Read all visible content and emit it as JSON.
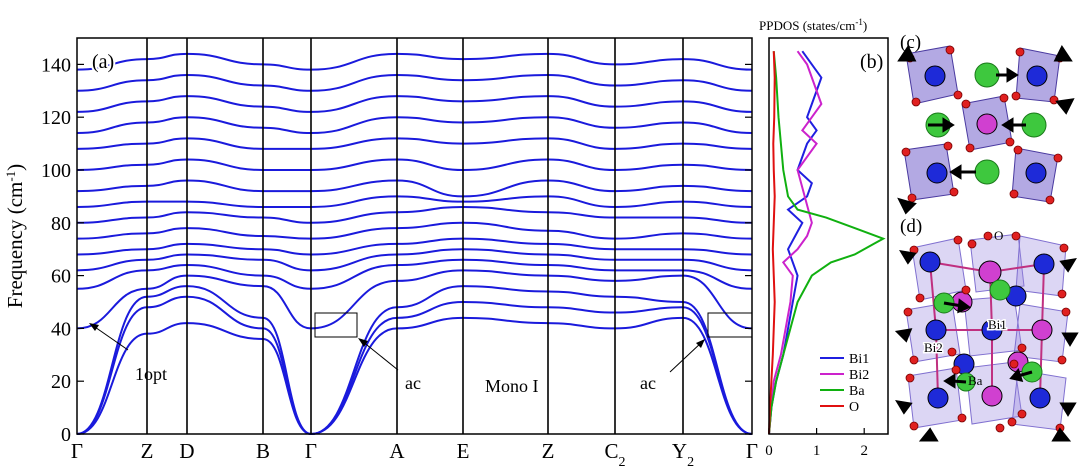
{
  "panels": {
    "a": {
      "label": "(a)",
      "phase_label": "Mono I",
      "annotations": [
        "1opt",
        "ac",
        "ac"
      ]
    },
    "b": {
      "label": "(b)"
    },
    "c": {
      "label": "(c)"
    },
    "d": {
      "label": "(d)",
      "atom_labels": [
        "O",
        "Bi1",
        "Bi2",
        "Ba"
      ]
    }
  },
  "colors": {
    "band": "#1a1adc",
    "Bi1": "#1f1fe0",
    "Bi2": "#cc22cc",
    "Ba": "#10b010",
    "O": "#e01010",
    "octahedron": "#8070d0"
  },
  "chart_data": [
    {
      "type": "line",
      "panel": "a",
      "ylabel": "Frequency (cm",
      "ylabel_sup": "-1",
      "ylabel_tail": ")",
      "ylim": [
        0,
        150
      ],
      "yticks": [
        0,
        20,
        40,
        60,
        80,
        100,
        120,
        140
      ],
      "x": [
        "Γ",
        "Z",
        "D",
        "B",
        "Γ",
        "A",
        "E",
        "Z",
        "C",
        "Y",
        "Γ"
      ],
      "x_subscripts": [
        "",
        "",
        "",
        "",
        "",
        "",
        "",
        "",
        "2",
        "2",
        ""
      ],
      "series": [
        {
          "values": [
            0,
            38,
            42,
            36,
            0,
            40,
            44,
            42,
            40,
            44,
            0
          ]
        },
        {
          "values": [
            0,
            48,
            52,
            40,
            0,
            44,
            50,
            48,
            46,
            48,
            0
          ]
        },
        {
          "values": [
            0,
            52,
            56,
            44,
            0,
            48,
            56,
            54,
            52,
            50,
            0
          ]
        },
        {
          "values": [
            40,
            55,
            60,
            56,
            40,
            58,
            62,
            60,
            58,
            60,
            40
          ]
        },
        {
          "values": [
            55,
            62,
            64,
            60,
            55,
            64,
            66,
            64,
            62,
            62,
            55
          ]
        },
        {
          "values": [
            62,
            66,
            68,
            66,
            62,
            68,
            70,
            68,
            66,
            66,
            62
          ]
        },
        {
          "values": [
            68,
            70,
            72,
            70,
            68,
            72,
            74,
            72,
            70,
            70,
            68
          ]
        },
        {
          "values": [
            74,
            76,
            78,
            75,
            74,
            78,
            80,
            77,
            74,
            76,
            74
          ]
        },
        {
          "values": [
            80,
            82,
            84,
            82,
            80,
            84,
            86,
            84,
            82,
            82,
            80
          ]
        },
        {
          "values": [
            86,
            88,
            88,
            86,
            86,
            90,
            88,
            90,
            86,
            88,
            86
          ]
        },
        {
          "values": [
            92,
            94,
            96,
            92,
            92,
            96,
            90,
            96,
            92,
            94,
            92
          ]
        },
        {
          "values": [
            100,
            102,
            104,
            100,
            100,
            104,
            100,
            104,
            100,
            102,
            100
          ]
        },
        {
          "values": [
            108,
            110,
            112,
            108,
            108,
            112,
            110,
            112,
            108,
            110,
            108
          ]
        },
        {
          "values": [
            114,
            118,
            120,
            116,
            114,
            120,
            118,
            120,
            116,
            118,
            114
          ]
        },
        {
          "values": [
            122,
            126,
            128,
            124,
            122,
            128,
            126,
            128,
            124,
            126,
            122
          ]
        },
        {
          "values": [
            130,
            134,
            136,
            132,
            130,
            136,
            134,
            136,
            132,
            134,
            130
          ]
        },
        {
          "values": [
            138,
            142,
            144,
            140,
            138,
            144,
            142,
            144,
            140,
            142,
            138
          ]
        }
      ]
    },
    {
      "type": "line",
      "panel": "b",
      "title": "PPDOS (states/cm",
      "title_sup": "-1",
      "title_tail": ")",
      "xlim": [
        0,
        2.5
      ],
      "xticks": [
        0,
        1,
        2
      ],
      "ylim": [
        0,
        150
      ],
      "legend_position": "bottom-right",
      "series": [
        {
          "name": "Bi1",
          "color": "#1f1fe0",
          "x": [
            0,
            0.05,
            0.15,
            0.3,
            0.4,
            0.5,
            0.6,
            0.4,
            0.55,
            0.7,
            0.4,
            0.8,
            0.9,
            0.6,
            0.8,
            1.0,
            0.8,
            0.9,
            1.1,
            0.9,
            0.7
          ],
          "y": [
            0,
            10,
            20,
            30,
            40,
            50,
            60,
            70,
            75,
            80,
            85,
            90,
            95,
            100,
            110,
            115,
            120,
            125,
            135,
            140,
            145
          ]
        },
        {
          "name": "Bi2",
          "color": "#cc22cc",
          "x": [
            0,
            0.05,
            0.1,
            0.25,
            0.35,
            0.45,
            0.5,
            0.3,
            0.6,
            0.8,
            0.9,
            0.6,
            0.8,
            1.0,
            0.7,
            0.9,
            1.1,
            0.8,
            0.6
          ],
          "y": [
            0,
            10,
            20,
            30,
            40,
            50,
            60,
            65,
            70,
            75,
            80,
            100,
            105,
            110,
            115,
            120,
            125,
            140,
            145
          ]
        },
        {
          "name": "Ba",
          "color": "#10b010",
          "x": [
            0,
            0.05,
            0.15,
            0.3,
            0.45,
            0.6,
            0.9,
            1.3,
            1.8,
            2.2,
            2.4,
            1.8,
            1.2,
            0.6,
            0.4,
            0.3,
            0.2,
            0.15,
            0.1
          ],
          "y": [
            0,
            10,
            20,
            30,
            40,
            50,
            60,
            65,
            68,
            72,
            74,
            78,
            82,
            85,
            90,
            100,
            120,
            135,
            145
          ]
        },
        {
          "name": "O",
          "color": "#e01010",
          "x": [
            0,
            0.02,
            0.05,
            0.08,
            0.1,
            0.12,
            0.1,
            0.08,
            0.1,
            0.12,
            0.1,
            0.09,
            0.11,
            0.12,
            0.1
          ],
          "y": [
            0,
            10,
            20,
            30,
            40,
            50,
            60,
            70,
            80,
            90,
            100,
            110,
            120,
            135,
            145
          ]
        }
      ]
    }
  ]
}
